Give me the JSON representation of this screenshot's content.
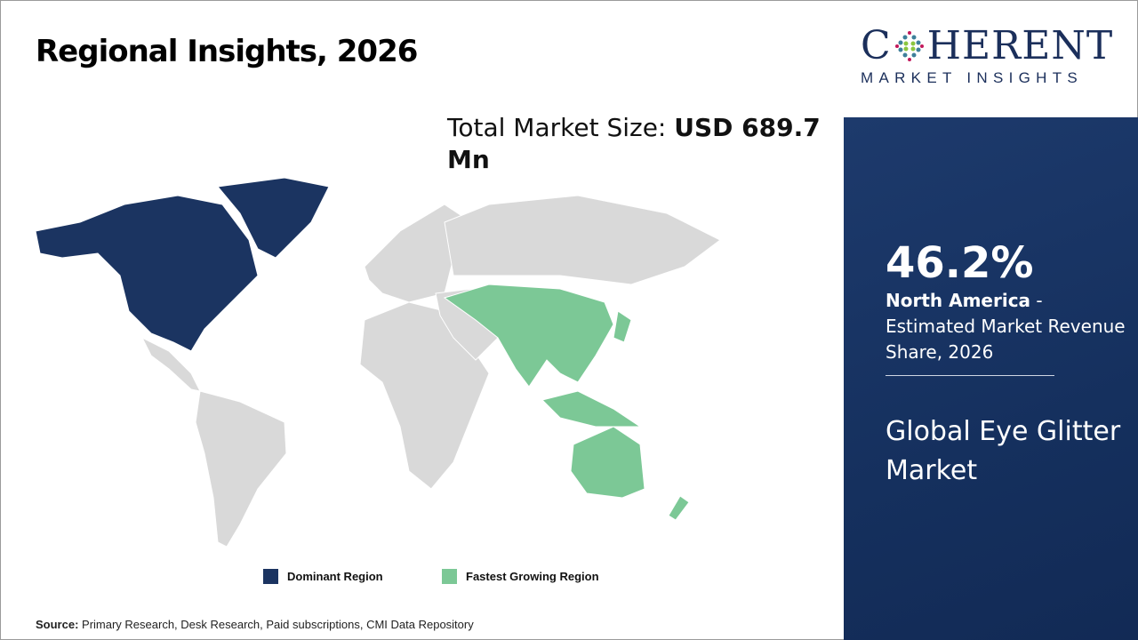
{
  "header": {
    "title": "Regional Insights, 2026"
  },
  "total_market": {
    "label": "Total Market Size: ",
    "value": "USD 689.7 Mn"
  },
  "legend": [
    {
      "label": "Dominant Region",
      "color": "#1b3461"
    },
    {
      "label": "Fastest Growing Region",
      "color": "#7cc896"
    }
  ],
  "map": {
    "base_color": "#d9d9d9"
  },
  "source": {
    "label": "Source:",
    "text": " Primary Research, Desk Research, Paid subscriptions, CMI Data Repository"
  },
  "logo": {
    "main_left": "C",
    "main_right": "HERENT",
    "sub": "MARKET INSIGHTS"
  },
  "sidebar": {
    "share": "46.2%",
    "region": "North America",
    "desc": " - Estimated Market Revenue Share, 2026",
    "market": "Global Eye Glitter Market",
    "bg_color": "#1d3a6c"
  }
}
